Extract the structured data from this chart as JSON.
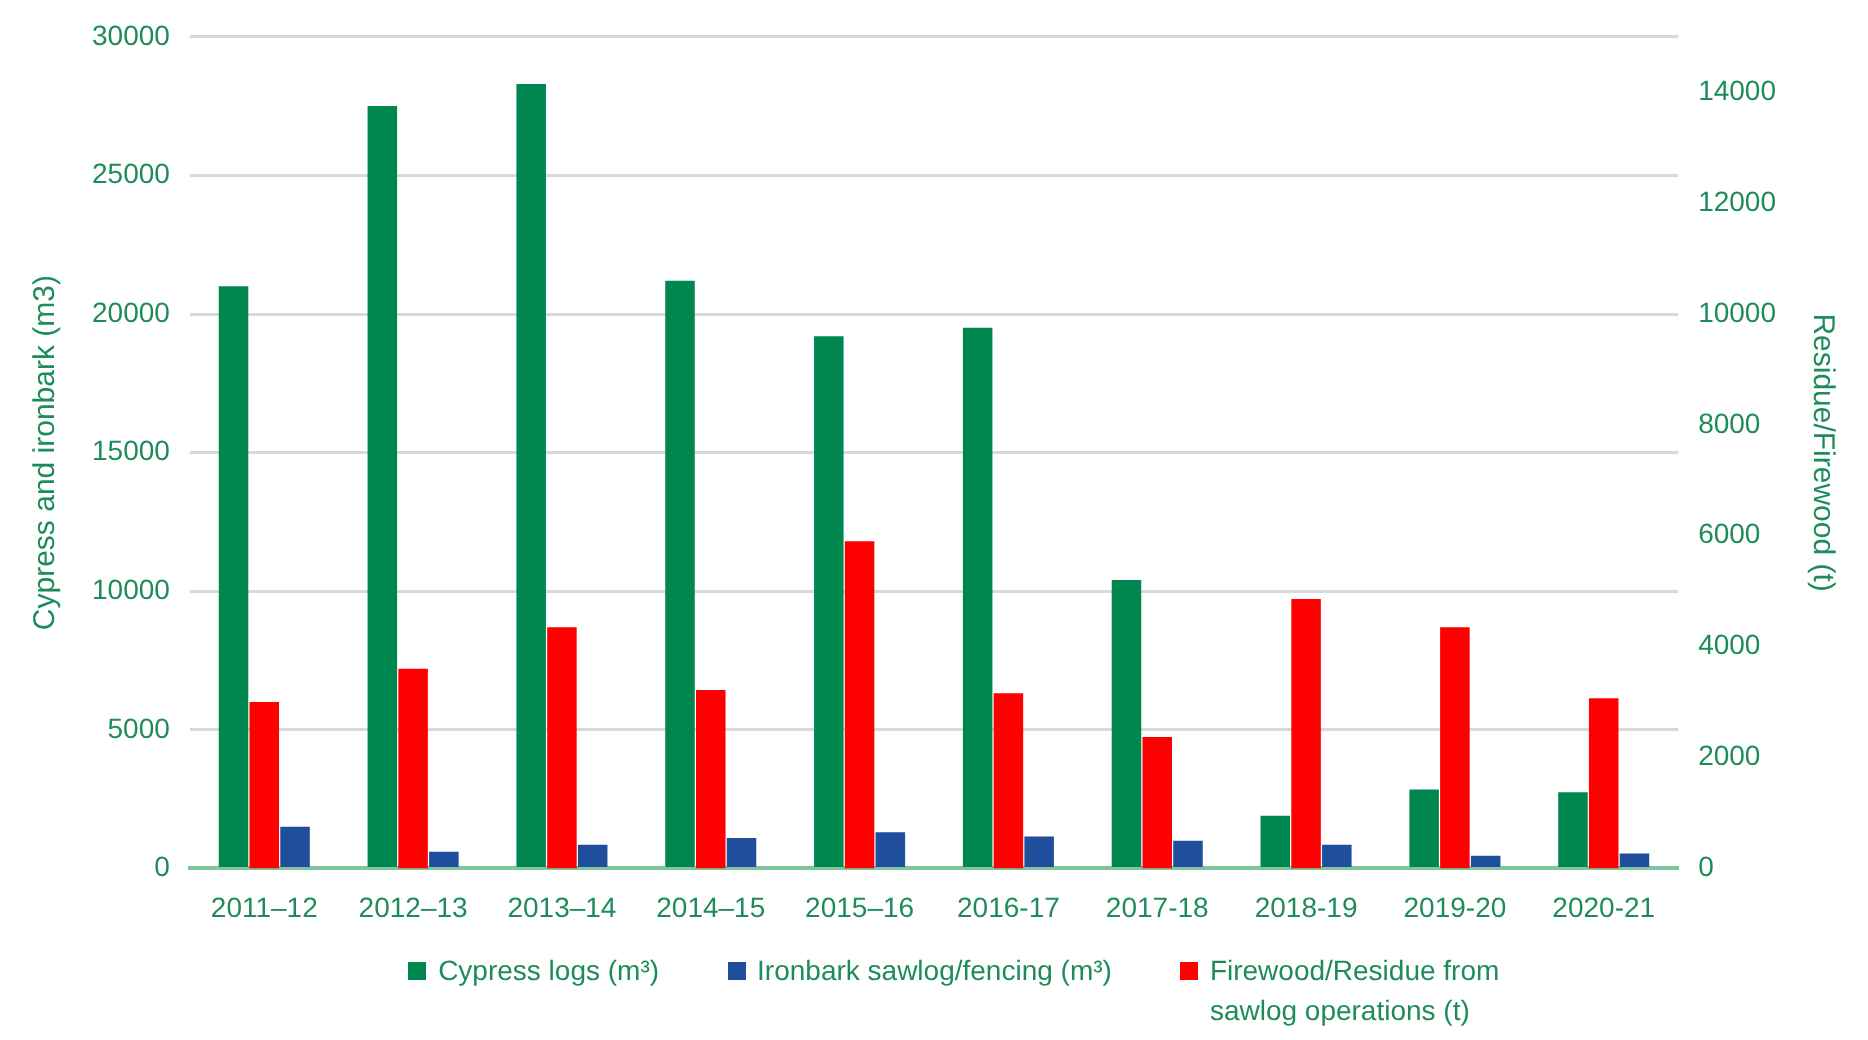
{
  "chart_data": {
    "type": "bar",
    "ylabel": "Cypress and ironbark (m3)",
    "y2label": "Residue/Firewood (t)",
    "categories": [
      "2011–12",
      "2012–13",
      "2013–14",
      "2014–15",
      "2015–16",
      "2016-17",
      "2017-18",
      "2018-19",
      "2019-20",
      "2020-21"
    ],
    "series": [
      {
        "name": "Cypress logs (m³)",
        "color": "#00874f",
        "values": [
          21000,
          27500,
          28300,
          21200,
          19200,
          19500,
          10400,
          1900,
          2850,
          2750
        ]
      },
      {
        "name": "Firewood/Residue from sawlog operations (t)",
        "color": "#ff0000",
        "axis": "y2",
        "values": [
          3000,
          3600,
          4350,
          3220,
          5900,
          3160,
          2370,
          4860,
          4350,
          3070
        ]
      },
      {
        "name": "Ironbark sawlog/fencing (m³)",
        "color": "#1f4e9c",
        "values": [
          1500,
          600,
          850,
          1100,
          1300,
          1150,
          1000,
          850,
          460,
          540
        ]
      }
    ],
    "ylim": [
      0,
      30000
    ],
    "yticks": [
      0,
      5000,
      10000,
      15000,
      20000,
      25000,
      30000
    ],
    "y2lim": [
      0,
      15000
    ],
    "y2ticks": [
      0,
      2000,
      4000,
      6000,
      8000,
      10000,
      12000,
      14000
    ],
    "grid": "y",
    "legend": "bottom"
  }
}
